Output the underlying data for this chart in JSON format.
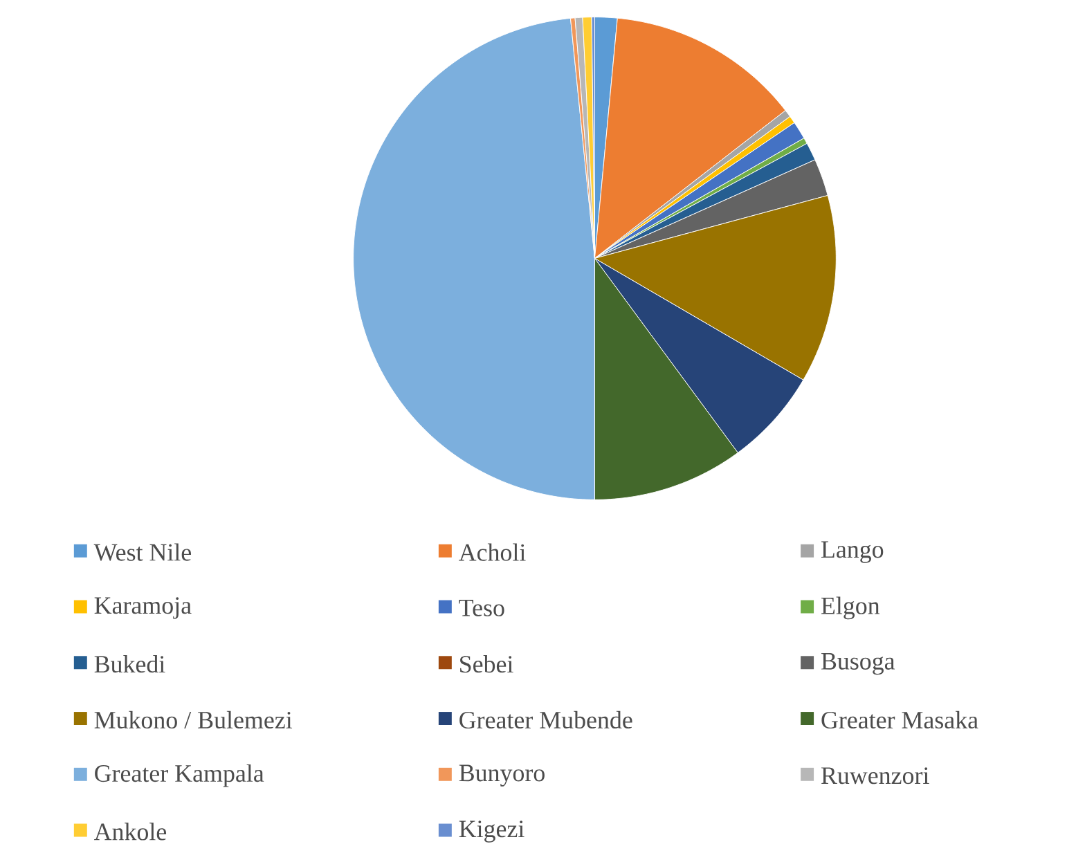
{
  "chart_data": {
    "type": "pie",
    "legend": "bottom",
    "categories": [
      "West Nile",
      "Acholi",
      "Lango",
      "Karamoja",
      "Teso",
      "Elgon",
      "Bukedi",
      "Sebei",
      "Busoga",
      "Mukono / Bulemezi",
      "Greater Mubende",
      "Greater Masaka",
      "Greater Kampala",
      "Bunyoro",
      "Ruwenzori",
      "Ankole",
      "Kigezi"
    ],
    "values": [
      1.5,
      13,
      0.5,
      0.5,
      1.2,
      0.4,
      1.2,
      null,
      2.5,
      12.6,
      6.5,
      10.1,
      48.4,
      0.3,
      0.5,
      0.6,
      0.2
    ],
    "colors": [
      "#5b9bd5",
      "#ed7d31",
      "#a5a5a5",
      "#ffc000",
      "#4472c4",
      "#70ad47",
      "#255e91",
      "#9e480e",
      "#636363",
      "#997300",
      "#264478",
      "#43682b",
      "#7cafdd",
      "#f1975a",
      "#b7b7b7",
      "#ffcd33",
      "#698ed0"
    ]
  }
}
